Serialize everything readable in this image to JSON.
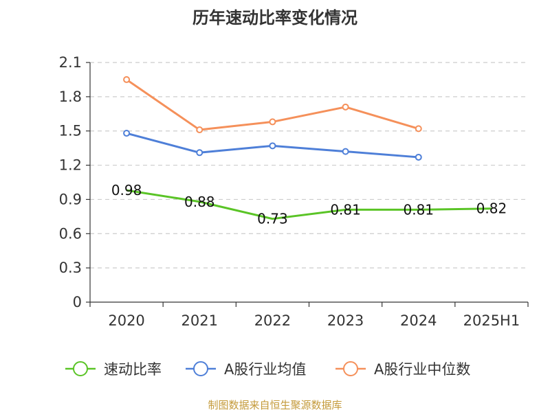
{
  "chart_data": {
    "type": "line",
    "title": "历年速动比率变化情况",
    "categories": [
      "2020",
      "2021",
      "2022",
      "2023",
      "2024",
      "2025H1"
    ],
    "ylim": [
      0,
      2.1
    ],
    "yticks": [
      "0",
      "0.3",
      "0.6",
      "0.9",
      "1.2",
      "1.5",
      "1.8",
      "2.1"
    ],
    "grid": true,
    "legend_position": "bottom",
    "series": [
      {
        "name": "速动比率",
        "color": "#5ac426",
        "values": [
          0.98,
          0.88,
          0.73,
          0.81,
          0.81,
          0.82
        ],
        "labels": [
          "0.98",
          "0.88",
          "0.73",
          "0.81",
          "0.81",
          "0.82"
        ]
      },
      {
        "name": "A股行业均值",
        "color": "#4e7fd8",
        "values": [
          1.48,
          1.31,
          1.37,
          1.32,
          1.27,
          null
        ]
      },
      {
        "name": "A股行业中位数",
        "color": "#f5905a",
        "values": [
          1.95,
          1.51,
          1.58,
          1.71,
          1.52,
          null
        ]
      }
    ]
  },
  "source": "制图数据来自恒生聚源数据库"
}
